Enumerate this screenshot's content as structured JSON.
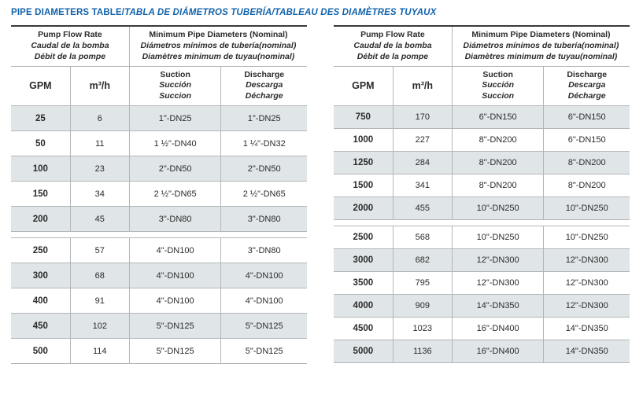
{
  "title": {
    "en": "PIPE DIAMETERS TABLE/",
    "intl": "TABLA DE DIÁMETROS TUBERÍA/TABLEAU DES DIAMÈTRES TUYAUX"
  },
  "headers": {
    "flow": {
      "en": "Pump Flow Rate",
      "es": "Caudal de la bomba",
      "fr": "Débit de la pompe"
    },
    "pipe": {
      "en": "Minimum Pipe Diameters (Nominal)",
      "es": "Diámetros mínimos de tubería(nominal)",
      "fr": "Diamètres minimum de tuyau(nominal)"
    },
    "gpm": "GPM",
    "m3h": "m³/h",
    "suction": {
      "en": "Suction",
      "es": "Succión",
      "fr": "Succion"
    },
    "discharge": {
      "en": "Discharge",
      "es": "Descarga",
      "fr": "Décharge"
    }
  },
  "columns": [
    "gpm",
    "m3h",
    "suction",
    "discharge"
  ],
  "tables": [
    {
      "id": "left",
      "groups": [
        [
          {
            "gpm": "25",
            "m3h": "6",
            "suction": "1\"-DN25",
            "discharge": "1\"-DN25"
          },
          {
            "gpm": "50",
            "m3h": "11",
            "suction": "1 ½\"-DN40",
            "discharge": "1 ¼\"-DN32"
          },
          {
            "gpm": "100",
            "m3h": "23",
            "suction": "2\"-DN50",
            "discharge": "2\"-DN50"
          },
          {
            "gpm": "150",
            "m3h": "34",
            "suction": "2 ½\"-DN65",
            "discharge": "2 ½\"-DN65"
          },
          {
            "gpm": "200",
            "m3h": "45",
            "suction": "3\"-DN80",
            "discharge": "3\"-DN80"
          }
        ],
        [
          {
            "gpm": "250",
            "m3h": "57",
            "suction": "4\"-DN100",
            "discharge": "3\"-DN80"
          },
          {
            "gpm": "300",
            "m3h": "68",
            "suction": "4\"-DN100",
            "discharge": "4\"-DN100"
          },
          {
            "gpm": "400",
            "m3h": "91",
            "suction": "4\"-DN100",
            "discharge": "4\"-DN100"
          },
          {
            "gpm": "450",
            "m3h": "102",
            "suction": "5\"-DN125",
            "discharge": "5\"-DN125"
          },
          {
            "gpm": "500",
            "m3h": "114",
            "suction": "5\"-DN125",
            "discharge": "5\"-DN125"
          }
        ]
      ]
    },
    {
      "id": "right",
      "groups": [
        [
          {
            "gpm": "750",
            "m3h": "170",
            "suction": "6\"-DN150",
            "discharge": "6\"-DN150"
          },
          {
            "gpm": "1000",
            "m3h": "227",
            "suction": "8\"-DN200",
            "discharge": "6\"-DN150"
          },
          {
            "gpm": "1250",
            "m3h": "284",
            "suction": "8\"-DN200",
            "discharge": "8\"-DN200"
          },
          {
            "gpm": "1500",
            "m3h": "341",
            "suction": "8\"-DN200",
            "discharge": "8\"-DN200"
          },
          {
            "gpm": "2000",
            "m3h": "455",
            "suction": "10\"-DN250",
            "discharge": "10\"-DN250"
          }
        ],
        [
          {
            "gpm": "2500",
            "m3h": "568",
            "suction": "10\"-DN250",
            "discharge": "10\"-DN250"
          },
          {
            "gpm": "3000",
            "m3h": "682",
            "suction": "12\"-DN300",
            "discharge": "12\"-DN300"
          },
          {
            "gpm": "3500",
            "m3h": "795",
            "suction": "12\"-DN300",
            "discharge": "12\"-DN300"
          },
          {
            "gpm": "4000",
            "m3h": "909",
            "suction": "14\"-DN350",
            "discharge": "12\"-DN300"
          },
          {
            "gpm": "4500",
            "m3h": "1023",
            "suction": "16\"-DN400",
            "discharge": "14\"-DN350"
          },
          {
            "gpm": "5000",
            "m3h": "1136",
            "suction": "16\"-DN400",
            "discharge": "14\"-DN350"
          }
        ]
      ]
    }
  ],
  "colors": {
    "title_blue": "#1263ab",
    "row_shade": "#e0e5e8",
    "line": "#b3b6b8",
    "line_dark": "#3a3a3a",
    "text": "#2b2b2b",
    "bg": "#ffffff"
  }
}
